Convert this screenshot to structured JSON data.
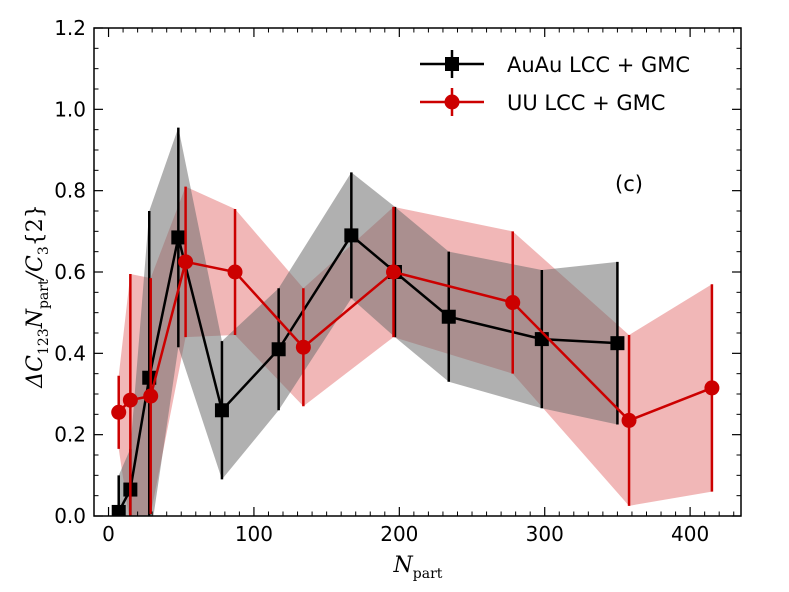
{
  "chart_data": {
    "type": "line",
    "title": "",
    "panel_label": "(c)",
    "xlabel": "N",
    "xlabel_sub": "part",
    "ylabel_parts": {
      "delta": "ΔC",
      "sub1": "123",
      "n": "N",
      "sub2": "part",
      "slash": "/C",
      "sub3": "3",
      "tail": "{2}"
    },
    "xlim": [
      -10,
      435
    ],
    "ylim": [
      0.0,
      1.2
    ],
    "xticks": [
      0,
      100,
      200,
      300,
      400
    ],
    "xtick_labels": [
      "0",
      "100",
      "200",
      "300",
      "400"
    ],
    "yticks": [
      0.0,
      0.2,
      0.4,
      0.6,
      0.8,
      1.0,
      1.2
    ],
    "ytick_labels": [
      "0.0",
      "0.2",
      "0.4",
      "0.6",
      "0.8",
      "1.0",
      "1.2"
    ],
    "legend_position": "top-right",
    "series": [
      {
        "name": "AuAu LCC + GMC",
        "color": "#000000",
        "band_color": "#6f6f6f",
        "marker": "square",
        "x": [
          7,
          15,
          28,
          48,
          78,
          117,
          167,
          197,
          234,
          298,
          350
        ],
        "y": [
          0.01,
          0.065,
          0.34,
          0.685,
          0.26,
          0.41,
          0.69,
          0.6,
          0.49,
          0.435,
          0.425
        ],
        "err": [
          0.09,
          0.1,
          0.41,
          0.27,
          0.17,
          0.15,
          0.155,
          0.16,
          0.16,
          0.17,
          0.2
        ]
      },
      {
        "name": "UU LCC + GMC",
        "color": "#cc0000",
        "band_color": "#e06060",
        "marker": "circle",
        "x": [
          7,
          15,
          29,
          53,
          87,
          134,
          196,
          278,
          358,
          415
        ],
        "y": [
          0.255,
          0.285,
          0.295,
          0.625,
          0.6,
          0.415,
          0.6,
          0.525,
          0.235,
          0.315
        ],
        "err": [
          0.09,
          0.31,
          0.29,
          0.185,
          0.155,
          0.145,
          0.16,
          0.175,
          0.21,
          0.255
        ]
      }
    ]
  }
}
